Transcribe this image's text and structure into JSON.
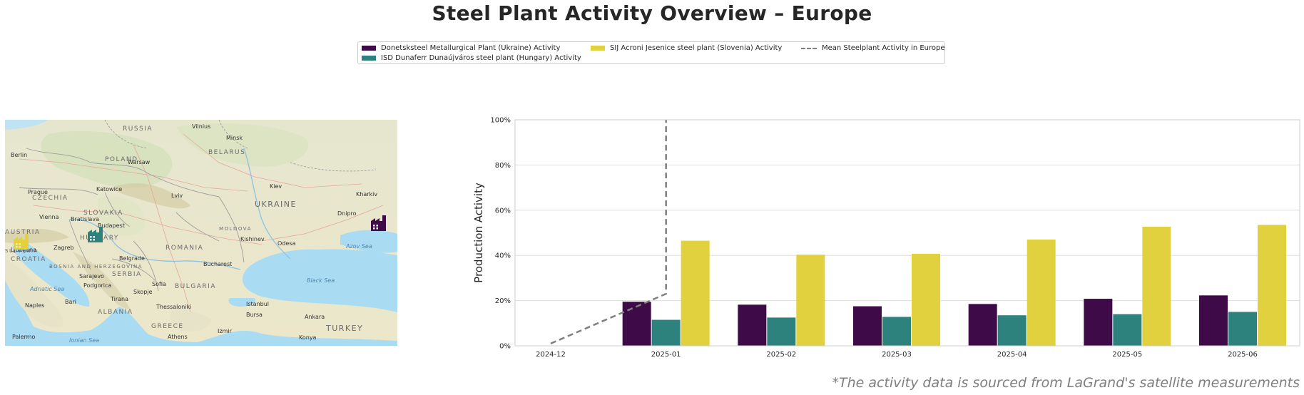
{
  "title": "Steel Plant Activity Overview – Europe",
  "footnote": "*The activity data is sourced from LaGrand's satellite measurements",
  "legend": {
    "placement": "top-center",
    "items": [
      {
        "label": "Donetsksteel Metallurgical Plant (Ukraine) Activity",
        "color": "#3e0b48",
        "kind": "bar"
      },
      {
        "label": "ISD Dunaferr Dunaújváros steel plant (Hungary) Activity",
        "color": "#2e827d",
        "kind": "bar"
      },
      {
        "label": "SIJ Acroni Jesenice steel plant (Slovenia) Activity",
        "color": "#e2d13e",
        "kind": "bar"
      },
      {
        "label": "Mean Steelplant Activity in Europe",
        "color": "#7f7f7f",
        "kind": "dashed-line"
      }
    ]
  },
  "map": {
    "cities": [
      "Vilnius",
      "Minsk",
      "Berlin",
      "Warsaw",
      "Prague",
      "Katowice",
      "Lviv",
      "Kiev",
      "Kharkiv",
      "Vienna",
      "Bratislava",
      "Budapest",
      "Dnipro",
      "Ljubljana",
      "Zagreb",
      "Kishinev",
      "Odesa",
      "Belgrade",
      "Bucharest",
      "Sarajevo",
      "Podgorica",
      "Sofia",
      "Skopje",
      "Tirana",
      "Bari",
      "Naples",
      "Thessaloniki",
      "Istanbul",
      "Bursa",
      "Ankara",
      "Izmir",
      "Athens",
      "Palermo",
      "Konya"
    ],
    "countries": [
      "RUSSIA",
      "POLAND",
      "BELARUS",
      "CZECHIA",
      "SLOVAKIA",
      "UKRAINE",
      "AUSTRIA",
      "HUNGARY",
      "MOLDOVA",
      "ROMANIA",
      "CROATIA",
      "BOSNIA AND HERZEGOVINA",
      "SERBIA",
      "BULGARIA",
      "ALBANIA",
      "GREECE",
      "TURKEY",
      "SLOVENIA"
    ],
    "seas": [
      "Azov Sea",
      "Black Sea",
      "Adriatic Sea",
      "Ionian Sea"
    ],
    "markers": [
      {
        "plant": "Donetsksteel Metallurgical Plant (Ukraine)",
        "color": "#3e0b48",
        "icon": "factory-icon"
      },
      {
        "plant": "ISD Dunaferr Dunaújváros steel plant (Hungary)",
        "color": "#2e827d",
        "icon": "factory-icon"
      },
      {
        "plant": "SIJ Acroni Jesenice steel plant (Slovenia)",
        "color": "#e2d13e",
        "icon": "factory-icon"
      }
    ]
  },
  "chart_data": {
    "type": "bar",
    "ylabel": "Production Activity",
    "xlabel": "",
    "ylim": [
      0,
      100
    ],
    "ytick_values": [
      0,
      20,
      40,
      60,
      80,
      100
    ],
    "ytick_labels": [
      "0%",
      "20%",
      "40%",
      "60%",
      "80%",
      "100%"
    ],
    "grid": "horizontal",
    "categories": [
      "2024-12",
      "2025-01",
      "2025-02",
      "2025-03",
      "2025-04",
      "2025-05",
      "2025-06"
    ],
    "series": [
      {
        "name": "Donetsksteel Metallurgical Plant (Ukraine) Activity",
        "color": "#3e0b48",
        "values": [
          null,
          19.5,
          18.2,
          17.5,
          18.5,
          20.8,
          22.3
        ]
      },
      {
        "name": "ISD Dunaferr Dunaújváros steel plant (Hungary) Activity",
        "color": "#2e827d",
        "values": [
          null,
          11.5,
          12.5,
          12.8,
          13.5,
          14.0,
          15.0
        ]
      },
      {
        "name": "SIJ Acroni Jesenice steel plant (Slovenia) Activity",
        "color": "#e2d13e",
        "values": [
          null,
          46.5,
          40.3,
          40.7,
          47.0,
          52.7,
          53.5
        ]
      }
    ],
    "lines": [
      {
        "name": "Mean Steelplant Activity in Europe",
        "color": "#7f7f7f",
        "style": "dashed",
        "x": [
          "2024-12",
          "2025-01",
          "2025-01"
        ],
        "y": [
          1.0,
          23.0,
          100
        ]
      }
    ]
  }
}
